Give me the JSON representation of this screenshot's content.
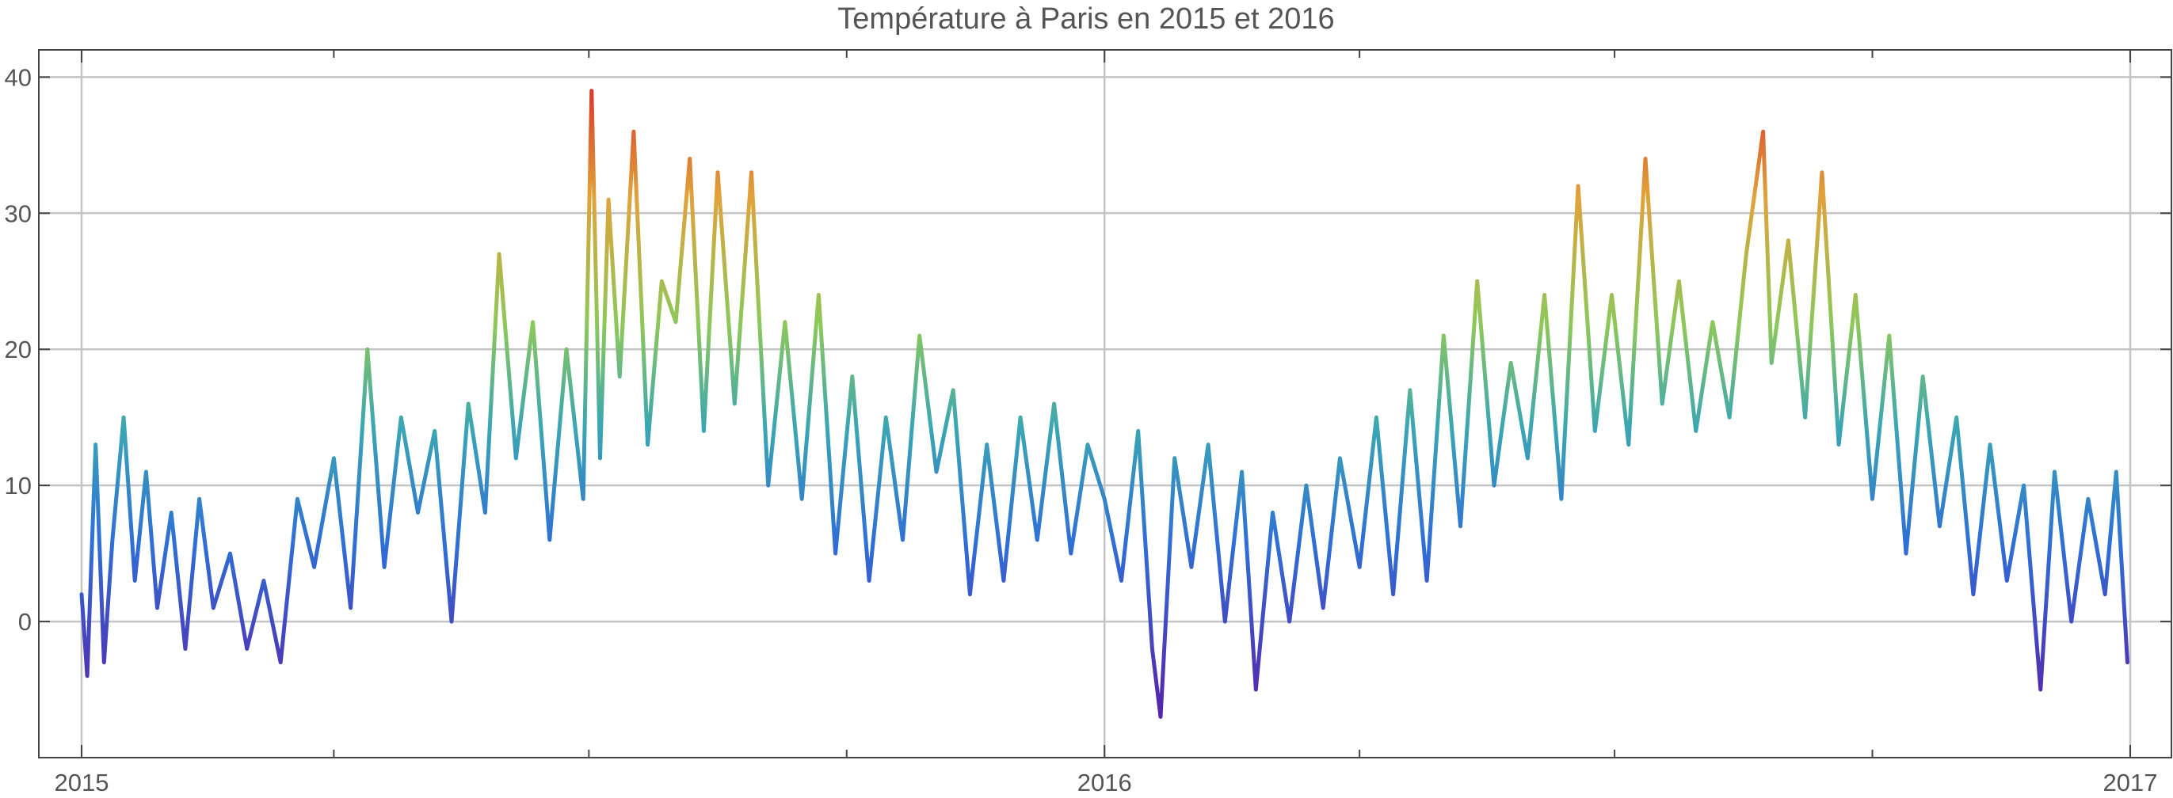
{
  "chart_data": {
    "type": "line",
    "title": "Température à Paris en 2015 et 2016",
    "xlabel": "",
    "ylabel": "",
    "x_range": [
      "2015-01-01",
      "2017-01-01"
    ],
    "ylim": [
      -10,
      42
    ],
    "y_ticks": [
      0,
      10,
      20,
      30,
      40
    ],
    "y_tick_labels": [
      "0",
      "10",
      "20",
      "30",
      "40"
    ],
    "x_ticks": [
      "2015-01-01",
      "2016-01-01",
      "2017-01-01"
    ],
    "x_tick_labels": [
      "2015",
      "2016",
      "2017"
    ],
    "x_minor_ticks": [
      "2015-04-01",
      "2015-07-01",
      "2015-10-01",
      "2016-04-01",
      "2016-07-01",
      "2016-10-01"
    ],
    "grid": true,
    "color_scheme": "rainbow by temperature (purple = cold, red = hot)",
    "colors": {
      "cold": "#5a1fa8",
      "cool": "#2f6fd6",
      "mild": "#3aa6b4",
      "warm": "#8cc85a",
      "hot": "#e0a33a",
      "hottest": "#d8322a"
    },
    "series": [
      {
        "values_note_x": "date",
        "points": [
          [
            "2015-01-01",
            2
          ],
          [
            "2015-01-03",
            -4
          ],
          [
            "2015-01-06",
            13
          ],
          [
            "2015-01-09",
            -3
          ],
          [
            "2015-01-12",
            6
          ],
          [
            "2015-01-16",
            15
          ],
          [
            "2015-01-20",
            3
          ],
          [
            "2015-01-24",
            11
          ],
          [
            "2015-01-28",
            1
          ],
          [
            "2015-02-02",
            8
          ],
          [
            "2015-02-07",
            -2
          ],
          [
            "2015-02-12",
            9
          ],
          [
            "2015-02-17",
            1
          ],
          [
            "2015-02-23",
            5
          ],
          [
            "2015-03-01",
            -2
          ],
          [
            "2015-03-07",
            3
          ],
          [
            "2015-03-13",
            -3
          ],
          [
            "2015-03-19",
            9
          ],
          [
            "2015-03-25",
            4
          ],
          [
            "2015-04-01",
            12
          ],
          [
            "2015-04-07",
            1
          ],
          [
            "2015-04-13",
            20
          ],
          [
            "2015-04-19",
            4
          ],
          [
            "2015-04-25",
            15
          ],
          [
            "2015-05-01",
            8
          ],
          [
            "2015-05-07",
            14
          ],
          [
            "2015-05-13",
            0
          ],
          [
            "2015-05-19",
            16
          ],
          [
            "2015-05-25",
            8
          ],
          [
            "2015-05-30",
            27
          ],
          [
            "2015-06-05",
            12
          ],
          [
            "2015-06-11",
            22
          ],
          [
            "2015-06-17",
            6
          ],
          [
            "2015-06-23",
            20
          ],
          [
            "2015-06-29",
            9
          ],
          [
            "2015-07-02",
            39
          ],
          [
            "2015-07-05",
            12
          ],
          [
            "2015-07-08",
            31
          ],
          [
            "2015-07-12",
            18
          ],
          [
            "2015-07-17",
            36
          ],
          [
            "2015-07-22",
            13
          ],
          [
            "2015-07-27",
            25
          ],
          [
            "2015-08-01",
            22
          ],
          [
            "2015-08-06",
            34
          ],
          [
            "2015-08-11",
            14
          ],
          [
            "2015-08-16",
            33
          ],
          [
            "2015-08-22",
            16
          ],
          [
            "2015-08-28",
            33
          ],
          [
            "2015-09-03",
            10
          ],
          [
            "2015-09-09",
            22
          ],
          [
            "2015-09-15",
            9
          ],
          [
            "2015-09-21",
            24
          ],
          [
            "2015-09-27",
            5
          ],
          [
            "2015-10-03",
            18
          ],
          [
            "2015-10-09",
            3
          ],
          [
            "2015-10-15",
            15
          ],
          [
            "2015-10-21",
            6
          ],
          [
            "2015-10-27",
            21
          ],
          [
            "2015-11-02",
            11
          ],
          [
            "2015-11-08",
            17
          ],
          [
            "2015-11-14",
            2
          ],
          [
            "2015-11-20",
            13
          ],
          [
            "2015-11-26",
            3
          ],
          [
            "2015-12-02",
            15
          ],
          [
            "2015-12-08",
            6
          ],
          [
            "2015-12-14",
            16
          ],
          [
            "2015-12-20",
            5
          ],
          [
            "2015-12-26",
            13
          ],
          [
            "2016-01-01",
            9
          ],
          [
            "2016-01-07",
            3
          ],
          [
            "2016-01-13",
            14
          ],
          [
            "2016-01-18",
            -2
          ],
          [
            "2016-01-21",
            -7
          ],
          [
            "2016-01-26",
            12
          ],
          [
            "2016-02-01",
            4
          ],
          [
            "2016-02-07",
            13
          ],
          [
            "2016-02-13",
            0
          ],
          [
            "2016-02-19",
            11
          ],
          [
            "2016-02-24",
            -5
          ],
          [
            "2016-03-01",
            8
          ],
          [
            "2016-03-07",
            0
          ],
          [
            "2016-03-13",
            10
          ],
          [
            "2016-03-19",
            1
          ],
          [
            "2016-03-25",
            12
          ],
          [
            "2016-04-01",
            4
          ],
          [
            "2016-04-07",
            15
          ],
          [
            "2016-04-13",
            2
          ],
          [
            "2016-04-19",
            17
          ],
          [
            "2016-04-25",
            3
          ],
          [
            "2016-05-01",
            21
          ],
          [
            "2016-05-07",
            7
          ],
          [
            "2016-05-13",
            25
          ],
          [
            "2016-05-19",
            10
          ],
          [
            "2016-05-25",
            19
          ],
          [
            "2016-05-31",
            12
          ],
          [
            "2016-06-06",
            24
          ],
          [
            "2016-06-12",
            9
          ],
          [
            "2016-06-18",
            32
          ],
          [
            "2016-06-24",
            14
          ],
          [
            "2016-06-30",
            24
          ],
          [
            "2016-07-06",
            13
          ],
          [
            "2016-07-12",
            34
          ],
          [
            "2016-07-18",
            16
          ],
          [
            "2016-07-24",
            25
          ],
          [
            "2016-07-30",
            14
          ],
          [
            "2016-08-05",
            22
          ],
          [
            "2016-08-11",
            15
          ],
          [
            "2016-08-17",
            27
          ],
          [
            "2016-08-23",
            36
          ],
          [
            "2016-08-26",
            19
          ],
          [
            "2016-09-01",
            28
          ],
          [
            "2016-09-07",
            15
          ],
          [
            "2016-09-13",
            33
          ],
          [
            "2016-09-19",
            13
          ],
          [
            "2016-09-25",
            24
          ],
          [
            "2016-10-01",
            9
          ],
          [
            "2016-10-07",
            21
          ],
          [
            "2016-10-13",
            5
          ],
          [
            "2016-10-19",
            18
          ],
          [
            "2016-10-25",
            7
          ],
          [
            "2016-10-31",
            15
          ],
          [
            "2016-11-06",
            2
          ],
          [
            "2016-11-12",
            13
          ],
          [
            "2016-11-18",
            3
          ],
          [
            "2016-11-24",
            10
          ],
          [
            "2016-11-30",
            -5
          ],
          [
            "2016-12-05",
            11
          ],
          [
            "2016-12-11",
            0
          ],
          [
            "2016-12-17",
            9
          ],
          [
            "2016-12-23",
            2
          ],
          [
            "2016-12-27",
            11
          ],
          [
            "2016-12-31",
            -3
          ]
        ]
      }
    ]
  }
}
